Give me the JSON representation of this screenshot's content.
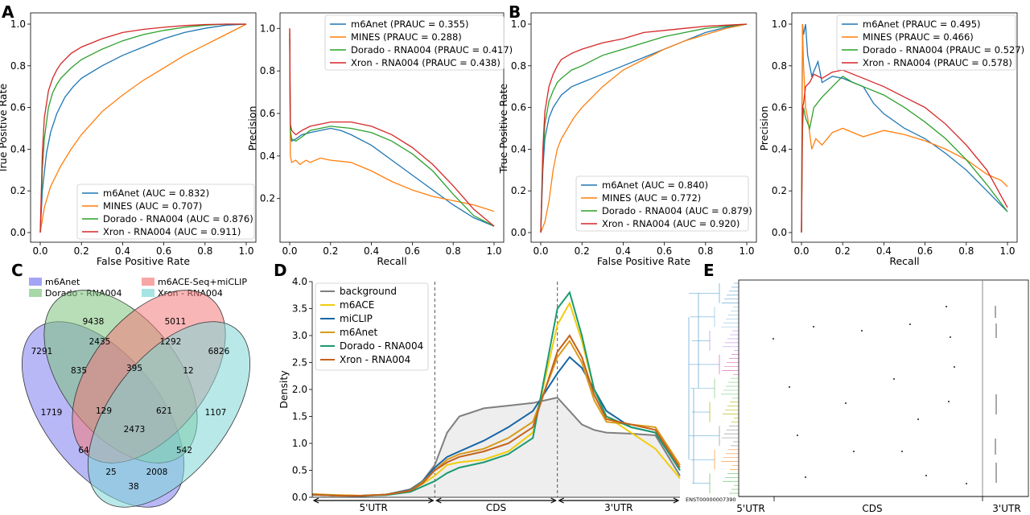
{
  "colors": {
    "blue": "#1f77b4",
    "orange": "#ff7f0e",
    "green": "#2ca02c",
    "red": "#d62728",
    "gray": "#7f7f7f",
    "yellow": "#f2cc0c",
    "darkblue": "#1766a6",
    "gold": "#d99a1b",
    "teal": "#1b9a70",
    "rust": "#c4621a"
  },
  "panel_letters": [
    "A",
    "B",
    "C",
    "D",
    "E"
  ],
  "chart_data": [
    {
      "panel": "A",
      "type": "line",
      "xlabel": "False Positive Rate",
      "ylabel": "True Positive Rate",
      "xlim": [
        0,
        1
      ],
      "ylim": [
        0,
        1
      ],
      "xticks": [
        "0.0",
        "0.2",
        "0.4",
        "0.6",
        "0.8",
        "1.0"
      ],
      "yticks": [
        "0.0",
        "0.2",
        "0.4",
        "0.6",
        "0.8",
        "1.0"
      ],
      "legend_placement": "lower-right",
      "grid": false,
      "series": [
        {
          "name": "m6Anet (AUC = 0.832)",
          "color": "#1f77b4",
          "x": [
            0,
            0.01,
            0.03,
            0.05,
            0.08,
            0.12,
            0.16,
            0.2,
            0.3,
            0.4,
            0.5,
            0.6,
            0.7,
            0.8,
            0.9,
            1.0
          ],
          "y": [
            0,
            0.2,
            0.38,
            0.48,
            0.57,
            0.65,
            0.7,
            0.74,
            0.8,
            0.85,
            0.89,
            0.93,
            0.96,
            0.98,
            0.995,
            1.0
          ]
        },
        {
          "name": "MINES (AUC = 0.707)",
          "color": "#ff7f0e",
          "x": [
            0,
            0.02,
            0.05,
            0.1,
            0.15,
            0.2,
            0.3,
            0.4,
            0.5,
            0.6,
            0.7,
            0.8,
            0.9,
            1.0
          ],
          "y": [
            0,
            0.12,
            0.22,
            0.32,
            0.4,
            0.47,
            0.58,
            0.66,
            0.73,
            0.79,
            0.85,
            0.9,
            0.95,
            1.0
          ]
        },
        {
          "name": "Dorado - RNA004 (AUC = 0.876)",
          "color": "#2ca02c",
          "x": [
            0,
            0.01,
            0.02,
            0.04,
            0.06,
            0.08,
            0.1,
            0.15,
            0.2,
            0.3,
            0.4,
            0.5,
            0.6,
            0.7,
            0.8,
            0.9,
            1.0
          ],
          "y": [
            0,
            0.3,
            0.45,
            0.6,
            0.67,
            0.71,
            0.74,
            0.79,
            0.83,
            0.88,
            0.92,
            0.95,
            0.97,
            0.985,
            0.995,
            1.0,
            1.0
          ]
        },
        {
          "name": "Xron - RNA004 (AUC = 0.911)",
          "color": "#d62728",
          "x": [
            0,
            0.01,
            0.02,
            0.04,
            0.06,
            0.08,
            0.1,
            0.15,
            0.2,
            0.3,
            0.4,
            0.5,
            0.6,
            0.7,
            0.8,
            0.9,
            1.0
          ],
          "y": [
            0,
            0.38,
            0.55,
            0.68,
            0.74,
            0.78,
            0.81,
            0.86,
            0.89,
            0.93,
            0.96,
            0.975,
            0.985,
            0.993,
            0.998,
            1.0,
            1.0
          ]
        }
      ]
    },
    {
      "panel": "A",
      "type": "line",
      "xlabel": "Recall",
      "ylabel": "Precision",
      "xlim": [
        0,
        1
      ],
      "ylim": [
        0.04,
        1.02
      ],
      "xticks": [
        "0.0",
        "0.2",
        "0.4",
        "0.6",
        "0.8",
        "1.0"
      ],
      "yticks": [
        "0.2",
        "0.4",
        "0.6",
        "0.8",
        "1.0"
      ],
      "legend_placement": "top-right",
      "grid": false,
      "series": [
        {
          "name": "m6Anet (PRAUC = 0.355)",
          "color": "#1f77b4",
          "x": [
            0,
            0.003,
            0.01,
            0.03,
            0.06,
            0.1,
            0.15,
            0.2,
            0.25,
            0.3,
            0.4,
            0.5,
            0.6,
            0.7,
            0.8,
            0.9,
            1.0
          ],
          "y": [
            0.95,
            0.5,
            0.47,
            0.48,
            0.5,
            0.51,
            0.52,
            0.53,
            0.52,
            0.5,
            0.45,
            0.38,
            0.31,
            0.24,
            0.17,
            0.11,
            0.07
          ]
        },
        {
          "name": "MINES (PRAUC = 0.288)",
          "color": "#ff7f0e",
          "x": [
            0,
            0.003,
            0.01,
            0.03,
            0.05,
            0.08,
            0.1,
            0.15,
            0.2,
            0.3,
            0.4,
            0.5,
            0.6,
            0.7,
            0.8,
            0.9,
            1.0
          ],
          "y": [
            1.0,
            0.4,
            0.37,
            0.38,
            0.36,
            0.38,
            0.37,
            0.39,
            0.38,
            0.37,
            0.33,
            0.28,
            0.24,
            0.21,
            0.19,
            0.17,
            0.14
          ]
        },
        {
          "name": "Dorado - RNA004 (PRAUC = 0.417)",
          "color": "#2ca02c",
          "x": [
            0,
            0.003,
            0.01,
            0.03,
            0.06,
            0.1,
            0.2,
            0.3,
            0.4,
            0.5,
            0.6,
            0.7,
            0.8,
            0.9,
            1.0
          ],
          "y": [
            0.98,
            0.52,
            0.48,
            0.47,
            0.49,
            0.52,
            0.54,
            0.53,
            0.51,
            0.47,
            0.41,
            0.33,
            0.22,
            0.12,
            0.07
          ]
        },
        {
          "name": "Xron - RNA004 (PRAUC = 0.438)",
          "color": "#d62728",
          "x": [
            0,
            0.003,
            0.01,
            0.03,
            0.06,
            0.1,
            0.2,
            0.3,
            0.4,
            0.5,
            0.6,
            0.7,
            0.8,
            0.9,
            1.0
          ],
          "y": [
            1.0,
            0.55,
            0.52,
            0.5,
            0.52,
            0.54,
            0.56,
            0.56,
            0.54,
            0.5,
            0.44,
            0.36,
            0.26,
            0.15,
            0.07
          ]
        }
      ]
    },
    {
      "panel": "B",
      "type": "line",
      "xlabel": "False Positive Rate",
      "ylabel": "True Positive Rate",
      "xlim": [
        0,
        1
      ],
      "ylim": [
        0,
        1
      ],
      "xticks": [
        "0.0",
        "0.2",
        "0.4",
        "0.6",
        "0.8",
        "1.0"
      ],
      "yticks": [
        "0.0",
        "0.2",
        "0.4",
        "0.6",
        "0.8",
        "1.0"
      ],
      "legend_placement": "lower-right",
      "grid": false,
      "series": [
        {
          "name": "m6Anet (AUC = 0.840)",
          "color": "#1f77b4",
          "x": [
            0,
            0.01,
            0.02,
            0.04,
            0.06,
            0.08,
            0.1,
            0.15,
            0.2,
            0.3,
            0.4,
            0.5,
            0.6,
            0.7,
            0.8,
            0.9,
            1.0
          ],
          "y": [
            0,
            0.3,
            0.45,
            0.55,
            0.6,
            0.63,
            0.66,
            0.7,
            0.72,
            0.76,
            0.8,
            0.84,
            0.88,
            0.92,
            0.96,
            0.985,
            1.0
          ]
        },
        {
          "name": "MINES (AUC = 0.772)",
          "color": "#ff7f0e",
          "x": [
            0,
            0.02,
            0.04,
            0.06,
            0.08,
            0.1,
            0.13,
            0.16,
            0.2,
            0.25,
            0.3,
            0.4,
            0.5,
            0.6,
            0.7,
            0.8,
            0.9,
            1.0
          ],
          "y": [
            0,
            0.05,
            0.15,
            0.3,
            0.4,
            0.45,
            0.5,
            0.55,
            0.6,
            0.65,
            0.7,
            0.78,
            0.83,
            0.88,
            0.92,
            0.95,
            0.98,
            1.0
          ]
        },
        {
          "name": "Dorado - RNA004 (AUC = 0.879)",
          "color": "#2ca02c",
          "x": [
            0,
            0.01,
            0.02,
            0.04,
            0.06,
            0.08,
            0.1,
            0.15,
            0.2,
            0.3,
            0.4,
            0.5,
            0.6,
            0.7,
            0.8,
            0.9,
            1.0
          ],
          "y": [
            0,
            0.35,
            0.52,
            0.63,
            0.68,
            0.72,
            0.74,
            0.78,
            0.8,
            0.85,
            0.88,
            0.91,
            0.94,
            0.96,
            0.98,
            0.99,
            1.0
          ]
        },
        {
          "name": "Xron - RNA004 (AUC = 0.920)",
          "color": "#d62728",
          "x": [
            0,
            0.01,
            0.02,
            0.04,
            0.06,
            0.08,
            0.1,
            0.15,
            0.2,
            0.3,
            0.4,
            0.5,
            0.6,
            0.7,
            0.8,
            0.9,
            1.0
          ],
          "y": [
            0,
            0.4,
            0.58,
            0.7,
            0.76,
            0.8,
            0.83,
            0.86,
            0.88,
            0.91,
            0.93,
            0.96,
            0.97,
            0.98,
            0.99,
            0.995,
            1.0
          ]
        }
      ]
    },
    {
      "panel": "B",
      "type": "line",
      "xlabel": "Recall",
      "ylabel": "Precision",
      "xlim": [
        0,
        1
      ],
      "ylim": [
        0,
        1
      ],
      "xticks": [
        "0.0",
        "0.2",
        "0.4",
        "0.6",
        "0.8",
        "1.0"
      ],
      "yticks": [
        "0.0",
        "0.2",
        "0.4",
        "0.6",
        "0.8",
        "1.0"
      ],
      "legend_placement": "top-right",
      "grid": false,
      "series": [
        {
          "name": "m6Anet (PRAUC = 0.495)",
          "color": "#1f77b4",
          "x": [
            0,
            0.005,
            0.01,
            0.02,
            0.03,
            0.05,
            0.08,
            0.1,
            0.15,
            0.2,
            0.25,
            0.3,
            0.35,
            0.4,
            0.5,
            0.6,
            0.7,
            0.8,
            0.9,
            1.0
          ],
          "y": [
            0.0,
            1.0,
            0.95,
            1.0,
            0.85,
            0.75,
            0.82,
            0.72,
            0.75,
            0.74,
            0.72,
            0.7,
            0.62,
            0.57,
            0.5,
            0.45,
            0.38,
            0.3,
            0.2,
            0.1
          ]
        },
        {
          "name": "MINES (PRAUC = 0.466)",
          "color": "#ff7f0e",
          "x": [
            0,
            0.005,
            0.01,
            0.02,
            0.03,
            0.05,
            0.07,
            0.1,
            0.15,
            0.2,
            0.3,
            0.4,
            0.5,
            0.6,
            0.7,
            0.8,
            0.9,
            0.97,
            1.0
          ],
          "y": [
            0.0,
            1.0,
            0.8,
            0.6,
            0.55,
            0.4,
            0.45,
            0.42,
            0.48,
            0.5,
            0.46,
            0.49,
            0.47,
            0.44,
            0.4,
            0.35,
            0.28,
            0.25,
            0.22
          ]
        },
        {
          "name": "Dorado - RNA004 (PRAUC = 0.527)",
          "color": "#2ca02c",
          "x": [
            0,
            0.005,
            0.01,
            0.02,
            0.04,
            0.06,
            0.1,
            0.15,
            0.2,
            0.25,
            0.3,
            0.4,
            0.5,
            0.6,
            0.7,
            0.8,
            0.9,
            1.0
          ],
          "y": [
            0.0,
            0.5,
            0.6,
            0.55,
            0.5,
            0.6,
            0.65,
            0.7,
            0.75,
            0.72,
            0.7,
            0.66,
            0.6,
            0.53,
            0.45,
            0.35,
            0.23,
            0.1
          ]
        },
        {
          "name": "Xron - RNA004 (PRAUC = 0.578)",
          "color": "#d62728",
          "x": [
            0,
            0.005,
            0.01,
            0.02,
            0.04,
            0.06,
            0.1,
            0.15,
            0.2,
            0.25,
            0.3,
            0.4,
            0.5,
            0.6,
            0.7,
            0.8,
            0.9,
            1.0
          ],
          "y": [
            0.0,
            0.6,
            0.62,
            0.7,
            0.72,
            0.76,
            0.74,
            0.77,
            0.78,
            0.76,
            0.74,
            0.7,
            0.65,
            0.6,
            0.52,
            0.42,
            0.3,
            0.12
          ]
        }
      ]
    },
    {
      "panel": "C",
      "type": "venn",
      "legend": [
        {
          "label": "m6Anet",
          "color": "#a4a4f5"
        },
        {
          "label": "Dorado - RNA004",
          "color": "#a7d8a7"
        },
        {
          "label": "m6ACE-Seq+miCLIP",
          "color": "#f7a6a6"
        },
        {
          "label": "Xron - RNA004",
          "color": "#a6e4e4"
        }
      ],
      "set_totals": [
        "7291",
        "9438",
        "5011",
        "6826"
      ],
      "regions": [
        "1719",
        "2435",
        "1292",
        "1107",
        "835",
        "395",
        "12",
        "129",
        "621",
        "2473",
        "64",
        "542",
        "25",
        "2008",
        "38"
      ]
    },
    {
      "panel": "D",
      "type": "area",
      "xlabel": "",
      "ylabel": "Density",
      "xlim": [
        0,
        3
      ],
      "ylim": [
        0,
        4
      ],
      "yticks": [
        "0.0",
        "0.5",
        "1.0",
        "1.5",
        "2.0",
        "2.5",
        "3.0",
        "3.5",
        "4.0"
      ],
      "region_labels": [
        "5'UTR",
        "CDS",
        "3'UTR"
      ],
      "legend_placement": "top-left",
      "grid": false,
      "x": [
        0,
        0.2,
        0.4,
        0.6,
        0.8,
        0.9,
        1.0,
        1.1,
        1.2,
        1.4,
        1.6,
        1.8,
        2.0,
        2.1,
        2.2,
        2.3,
        2.4,
        2.6,
        2.8,
        3.0
      ],
      "series": [
        {
          "name": "background",
          "color": "#7f7f7f",
          "values": [
            0.05,
            0.03,
            0.02,
            0.05,
            0.15,
            0.3,
            0.6,
            1.2,
            1.5,
            1.65,
            1.7,
            1.75,
            1.85,
            1.6,
            1.35,
            1.25,
            1.2,
            1.18,
            1.15,
            0.4
          ]
        },
        {
          "name": "m6ACE",
          "color": "#f2cc0c",
          "values": [
            0.06,
            0.04,
            0.03,
            0.05,
            0.12,
            0.25,
            0.4,
            0.6,
            0.65,
            0.7,
            0.85,
            1.2,
            3.2,
            3.6,
            2.9,
            2.0,
            1.5,
            1.2,
            0.9,
            0.35
          ]
        },
        {
          "name": "miCLIP",
          "color": "#1766a6",
          "values": [
            0.05,
            0.03,
            0.03,
            0.05,
            0.13,
            0.3,
            0.55,
            0.75,
            0.85,
            1.05,
            1.3,
            1.6,
            2.3,
            2.6,
            2.4,
            2.0,
            1.6,
            1.3,
            1.2,
            0.5
          ]
        },
        {
          "name": "m6Anet",
          "color": "#d99a1b",
          "values": [
            0.06,
            0.04,
            0.03,
            0.05,
            0.12,
            0.28,
            0.5,
            0.7,
            0.8,
            0.9,
            1.1,
            1.4,
            2.6,
            2.9,
            2.5,
            1.8,
            1.4,
            1.35,
            1.3,
            0.6
          ]
        },
        {
          "name": "Dorado - RNA004",
          "color": "#1b9a70",
          "values": [
            0.05,
            0.03,
            0.03,
            0.04,
            0.1,
            0.2,
            0.3,
            0.45,
            0.55,
            0.65,
            0.8,
            1.1,
            3.5,
            3.8,
            3.0,
            2.0,
            1.5,
            1.3,
            1.2,
            0.5
          ]
        },
        {
          "name": "Xron - RNA004",
          "color": "#c4621a",
          "values": [
            0.05,
            0.03,
            0.03,
            0.05,
            0.12,
            0.26,
            0.5,
            0.65,
            0.75,
            0.85,
            1.0,
            1.3,
            2.7,
            3.0,
            2.6,
            1.9,
            1.45,
            1.35,
            1.25,
            0.55
          ]
        }
      ]
    },
    {
      "panel": "E",
      "type": "heatmap",
      "row_label": "ENST00000007390",
      "region_labels": [
        "5'UTR",
        "CDS",
        "3'UTR"
      ]
    }
  ]
}
